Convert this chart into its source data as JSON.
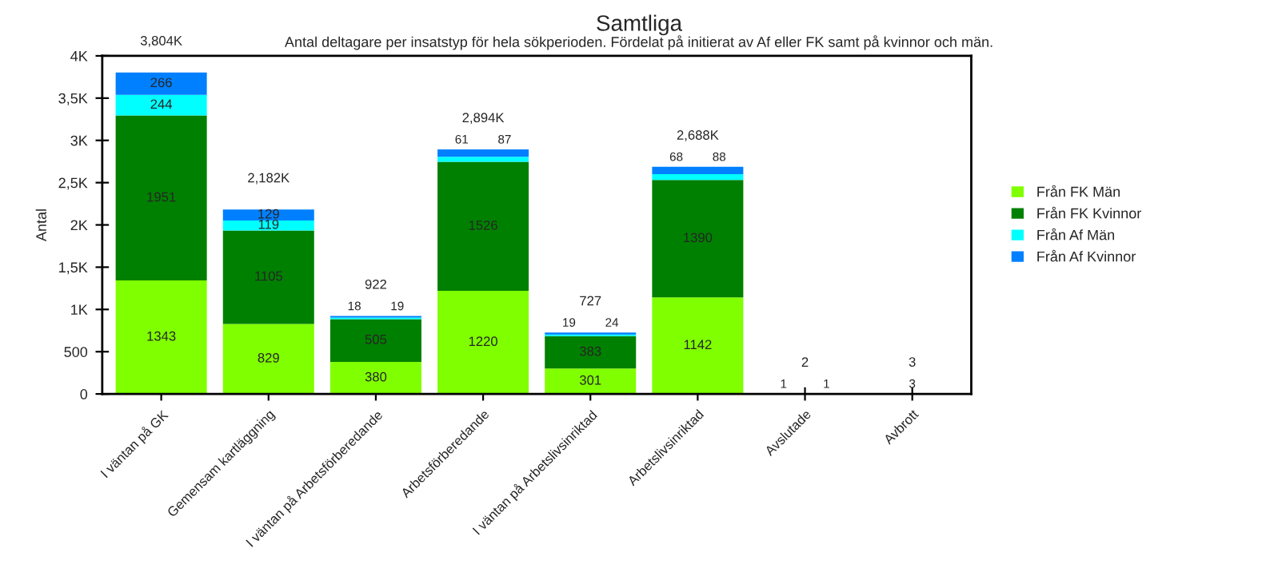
{
  "chart_data": {
    "type": "bar",
    "title": "Samtliga",
    "subtitle": "Antal deltagare per insatstyp för hela sökperioden. Fördelat på initierat av Af eller FK samt på kvinnor och män.",
    "ylabel": "Antal",
    "categories": [
      "I väntan på GK",
      "Gemensam kartläggning",
      "I väntan på Arbetsförberedande",
      "Arbetsförberedande",
      "I väntan på Arbetslivsinriktad",
      "Arbetslivsinriktad",
      "Avslutade",
      "Avbrott"
    ],
    "stacked": true,
    "series": [
      {
        "name": "Från FK Män",
        "color": "#80ff00",
        "values": [
          1343,
          829,
          380,
          1220,
          301,
          1142,
          null,
          null
        ]
      },
      {
        "name": "Från FK Kvinnor",
        "color": "#008000",
        "values": [
          1951,
          1105,
          505,
          1526,
          383,
          1390,
          null,
          null
        ]
      },
      {
        "name": "Från Af Män",
        "color": "#00ffff",
        "values": [
          244,
          119,
          18,
          61,
          19,
          68,
          1,
          3
        ]
      },
      {
        "name": "Från Af Kvinnor",
        "color": "#0080ff",
        "values": [
          266,
          129,
          19,
          87,
          24,
          88,
          1,
          null
        ]
      }
    ],
    "totals": [
      "3,804K",
      "2,182K",
      "922",
      "2,894K",
      "727",
      "2,688K",
      "2",
      "3"
    ],
    "data_labels": true,
    "ylim": [
      0,
      4000
    ],
    "yticks": [
      0,
      500,
      {
        "value": 1000,
        "label": "1K"
      },
      {
        "value": 1500,
        "label": "1,5K"
      },
      {
        "value": 2000,
        "label": "2K"
      },
      {
        "value": 2500,
        "label": "2,5K"
      },
      {
        "value": 3000,
        "label": "3K"
      },
      {
        "value": 3500,
        "label": "3,5K"
      },
      {
        "value": 4000,
        "label": "4K"
      }
    ],
    "grid": false,
    "legend": "right"
  }
}
